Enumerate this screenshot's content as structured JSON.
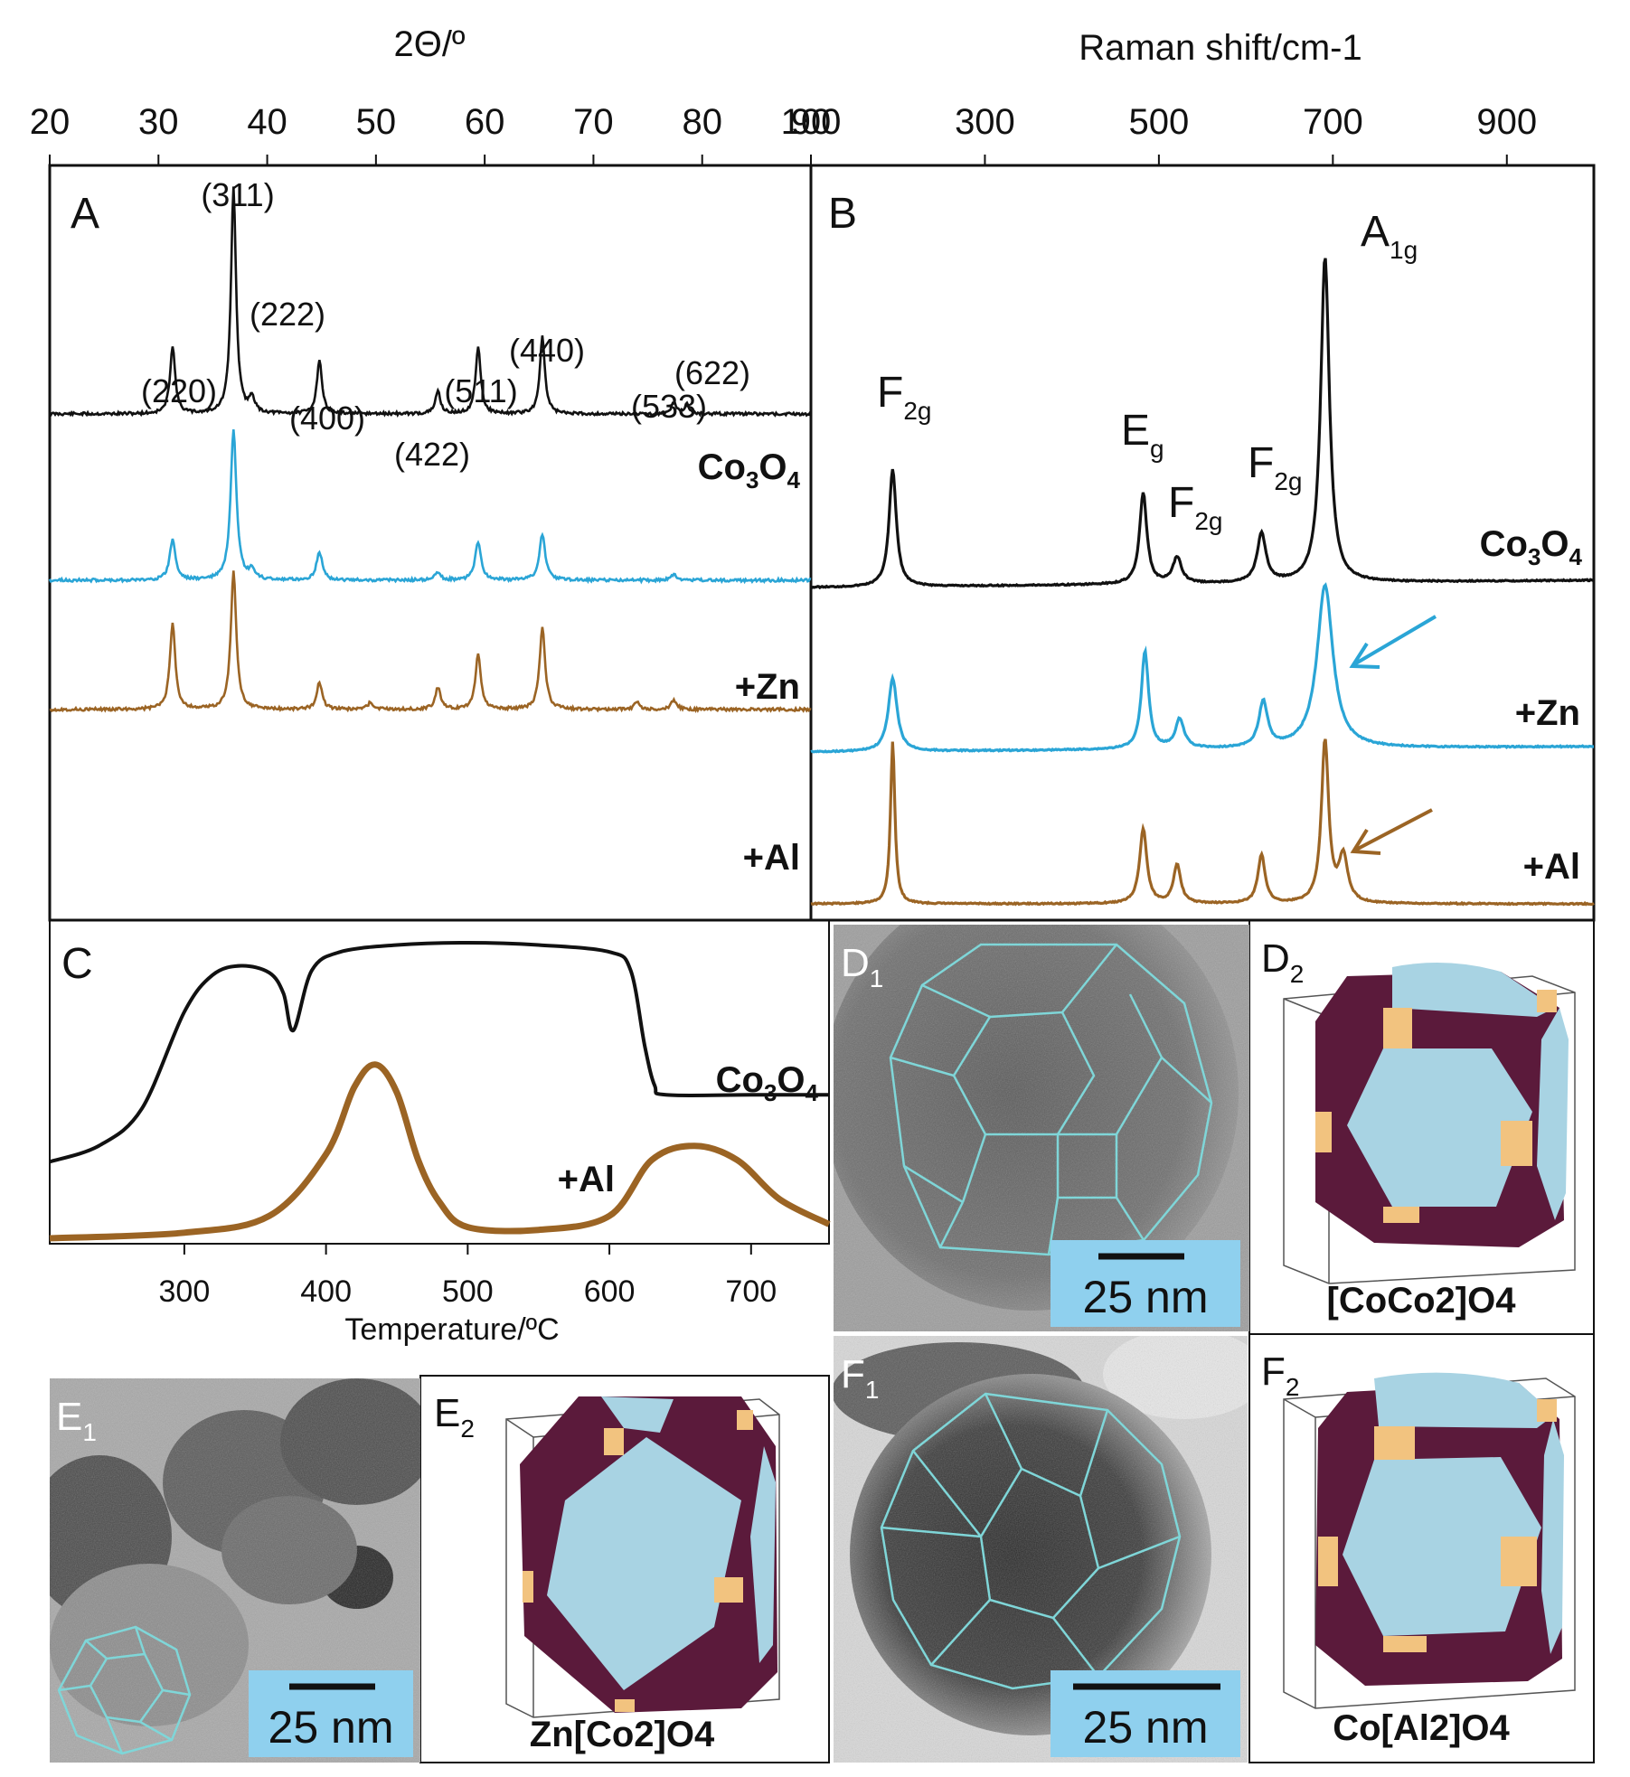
{
  "panels": {
    "A": {
      "letter": "A",
      "xlabel": "2Θ/º",
      "xlim": [
        20,
        90
      ],
      "xticks": [
        "20",
        "30",
        "40",
        "50",
        "60",
        "70",
        "80",
        "90"
      ],
      "peaks": [
        {
          "label": "(220)",
          "x": 31.3
        },
        {
          "label": "(311)",
          "x": 36.9
        },
        {
          "label": "(222)",
          "x": 38.6
        },
        {
          "label": "(400)",
          "x": 44.8
        },
        {
          "label": "(422)",
          "x": 55.7
        },
        {
          "label": "(511)",
          "x": 59.4
        },
        {
          "label": "(440)",
          "x": 65.3
        },
        {
          "label": "(533)",
          "x": 77.4
        },
        {
          "label": "(622)",
          "x": 78.6
        }
      ],
      "series_labels": {
        "co": "Co3O4",
        "zn": "+Zn",
        "al": "+Al"
      }
    },
    "B": {
      "letter": "B",
      "xlabel": "Raman shift/cm-1",
      "xlim": [
        100,
        1000
      ],
      "xticks": [
        "100",
        "300",
        "500",
        "700",
        "900"
      ],
      "modes": [
        {
          "label": "F2g",
          "x": 194
        },
        {
          "label": "Eg",
          "x": 482
        },
        {
          "label": "F2g",
          "x": 521
        },
        {
          "label": "F2g",
          "x": 618
        },
        {
          "label": "A1g",
          "x": 691
        }
      ],
      "series_labels": {
        "co": "Co3O4",
        "zn": "+Zn",
        "al": "+Al"
      }
    },
    "C": {
      "letter": "C",
      "xlabel": "Temperature/ºC",
      "xlim": [
        205,
        755
      ],
      "xticks": [
        "300",
        "400",
        "500",
        "600",
        "700"
      ],
      "series_labels": {
        "co": "Co3O4",
        "al": "+Al"
      }
    },
    "D1": {
      "letter": "D",
      "sub": "1",
      "scale": "25 nm"
    },
    "D2": {
      "letter": "D",
      "sub": "2",
      "formula": "[CoCo2]O4"
    },
    "E1": {
      "letter": "E",
      "sub": "1",
      "scale": "25 nm"
    },
    "E2": {
      "letter": "E",
      "sub": "2",
      "formula": "Zn[Co2]O4"
    },
    "F1": {
      "letter": "F",
      "sub": "1",
      "scale": "25 nm"
    },
    "F2": {
      "letter": "F",
      "sub": "2",
      "formula": "Co[Al2]O4"
    }
  },
  "colors": {
    "co": "#111111",
    "zn": "#2aa5d6",
    "al": "#9b6424",
    "hex": "#7fd6d8",
    "maroon": "#5b1a3b",
    "lightblue": "#a8d3e3",
    "tan": "#f2c37f",
    "scalebox": "#8fd0ee"
  },
  "chart_data": [
    {
      "type": "line",
      "title": "",
      "xlabel": "2Θ/º",
      "ylabel": "",
      "xlim": [
        20,
        90
      ],
      "series": [
        {
          "name": "Co3O4",
          "peaks_x": [
            31.3,
            36.9,
            38.6,
            44.8,
            55.7,
            59.4,
            65.3,
            77.4,
            78.6
          ],
          "peaks_rel_height": [
            0.3,
            1.0,
            0.07,
            0.24,
            0.1,
            0.3,
            0.34,
            0.05,
            0.04
          ]
        },
        {
          "name": "+Zn",
          "peaks_x": [
            31.3,
            36.9,
            38.6,
            44.8,
            55.7,
            59.4,
            65.3,
            77.4
          ],
          "peaks_rel_height": [
            0.27,
            1.0,
            0.06,
            0.19,
            0.05,
            0.26,
            0.31,
            0.04
          ]
        },
        {
          "name": "+Al",
          "peaks_x": [
            31.3,
            36.9,
            44.8,
            49.5,
            55.7,
            59.4,
            65.3,
            74.0,
            77.4
          ],
          "peaks_rel_height": [
            0.62,
            1.0,
            0.2,
            0.05,
            0.16,
            0.4,
            0.6,
            0.05,
            0.07
          ]
        }
      ]
    },
    {
      "type": "line",
      "title": "",
      "xlabel": "Raman shift/cm-1",
      "ylabel": "",
      "xlim": [
        100,
        1000
      ],
      "series": [
        {
          "name": "Co3O4",
          "peaks_x": [
            194,
            482,
            521,
            618,
            691
          ],
          "peaks_rel_height": [
            0.36,
            0.28,
            0.08,
            0.15,
            1.0
          ]
        },
        {
          "name": "+Zn",
          "peaks_x": [
            194,
            484,
            524,
            620,
            691
          ],
          "peaks_rel_height": [
            0.45,
            0.6,
            0.18,
            0.28,
            1.0
          ]
        },
        {
          "name": "+Al",
          "peaks_x": [
            194,
            482,
            521,
            618,
            691,
            712
          ],
          "peaks_rel_height": [
            1.0,
            0.46,
            0.24,
            0.3,
            1.0,
            0.28
          ]
        }
      ]
    },
    {
      "type": "line",
      "title": "",
      "xlabel": "Temperature/ºC",
      "ylabel": "",
      "xlim": [
        205,
        755
      ],
      "series": [
        {
          "name": "Co3O4",
          "x": [
            205,
            240,
            270,
            300,
            320,
            340,
            360,
            370,
            377,
            390,
            410,
            450,
            500,
            550,
            600,
            615,
            625,
            632,
            640,
            700,
            755
          ],
          "y": [
            0.05,
            0.12,
            0.28,
            0.7,
            0.86,
            0.9,
            0.87,
            0.78,
            0.62,
            0.88,
            0.96,
            0.99,
            1.0,
            0.99,
            0.96,
            0.88,
            0.55,
            0.38,
            0.34,
            0.34,
            0.34
          ]
        },
        {
          "name": "+Al",
          "x": [
            205,
            300,
            360,
            400,
            420,
            435,
            450,
            465,
            480,
            500,
            550,
            600,
            630,
            660,
            690,
            720,
            755
          ],
          "y": [
            0.0,
            0.02,
            0.08,
            0.3,
            0.54,
            0.62,
            0.52,
            0.28,
            0.13,
            0.04,
            0.03,
            0.08,
            0.28,
            0.33,
            0.28,
            0.14,
            0.05
          ]
        }
      ]
    }
  ]
}
